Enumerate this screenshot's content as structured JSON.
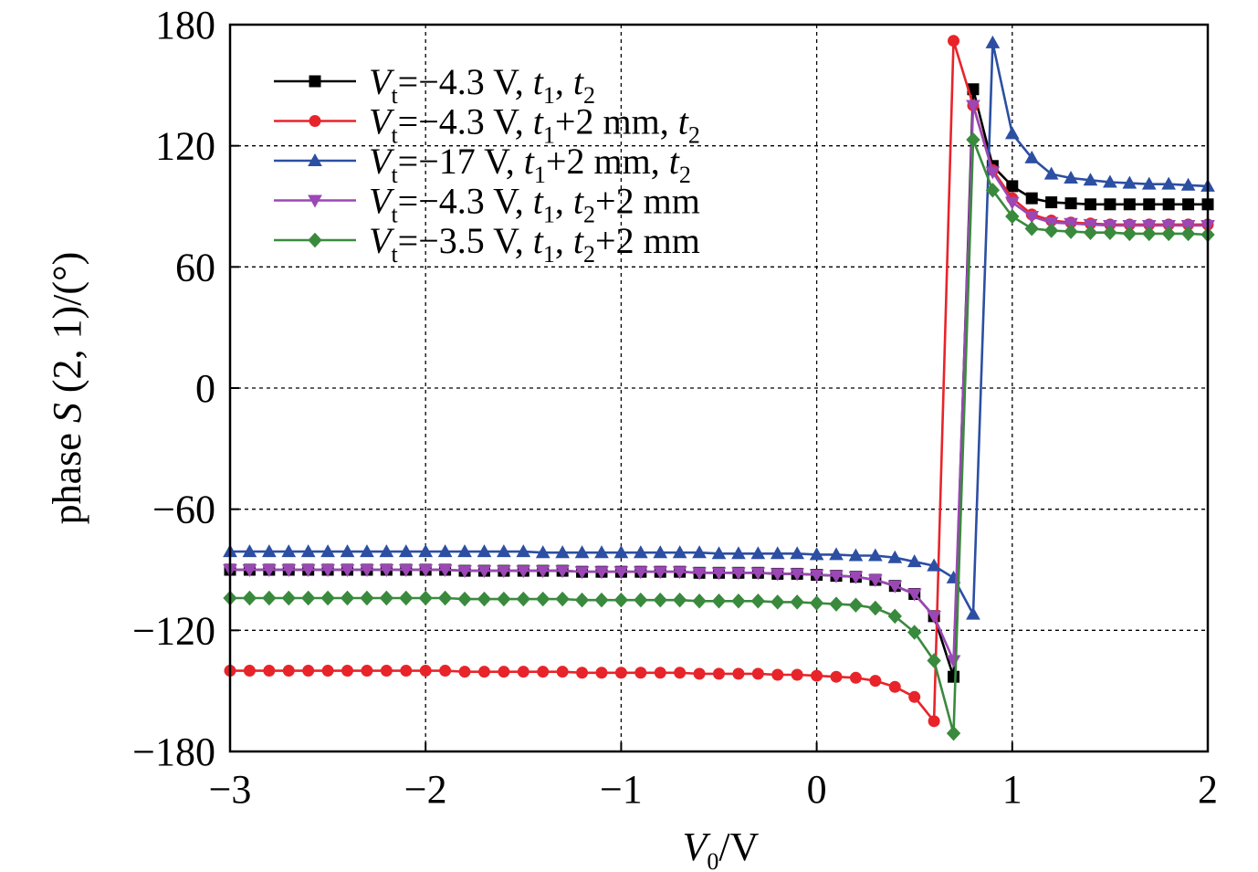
{
  "chart_data": {
    "type": "line",
    "xlabel": {
      "main": "V",
      "sub": "0",
      "suffix": "/V"
    },
    "ylabel": {
      "prefix": "phase ",
      "italic": "S",
      "suffix": " (2, 1)/(°)"
    },
    "xlim": [
      -3,
      2
    ],
    "ylim": [
      -180,
      180
    ],
    "xticks": [
      -3,
      -2,
      -1,
      0,
      1,
      2
    ],
    "yticks": [
      -180,
      -120,
      -60,
      0,
      60,
      120,
      180
    ],
    "xtick_labels": [
      "−3",
      "−2",
      "−1",
      "0",
      "1",
      "2"
    ],
    "ytick_labels": [
      "−180",
      "−120",
      "−60",
      "0",
      "60",
      "120",
      "180"
    ],
    "grid": true,
    "legend_position": "top-left",
    "x": [
      -3.0,
      -2.9,
      -2.8,
      -2.7,
      -2.6,
      -2.5,
      -2.4,
      -2.3,
      -2.2,
      -2.1,
      -2.0,
      -1.9,
      -1.8,
      -1.7,
      -1.6,
      -1.5,
      -1.4,
      -1.3,
      -1.2,
      -1.1,
      -1.0,
      -0.9,
      -0.8,
      -0.7,
      -0.6,
      -0.5,
      -0.4,
      -0.3,
      -0.2,
      -0.1,
      0.0,
      0.1,
      0.2,
      0.3,
      0.4,
      0.5,
      0.6,
      0.7,
      0.8,
      0.9,
      1.0,
      1.1,
      1.2,
      1.3,
      1.4,
      1.5,
      1.6,
      1.7,
      1.8,
      1.9,
      2.0
    ],
    "series": [
      {
        "legend": {
          "v": "V",
          "vsub": "t",
          "rest": "=−4.3 V, ",
          "parts": [
            [
              "t",
              "1"
            ],
            [
              ", ",
              ""
            ],
            [
              "t",
              "2"
            ]
          ]
        },
        "color": "#000000",
        "marker": "square",
        "values": [
          -90,
          -90,
          -90,
          -90,
          -90,
          -90,
          -90,
          -90,
          -90,
          -90,
          -90,
          -90,
          -90.5,
          -90.5,
          -90.5,
          -90.5,
          -90.5,
          -90.5,
          -91,
          -91,
          -91,
          -91,
          -91,
          -91,
          -91.5,
          -91.5,
          -91.5,
          -91.5,
          -92,
          -92,
          -92.5,
          -93,
          -93.5,
          -95,
          -98,
          -102,
          -113,
          -143,
          148,
          110,
          100,
          94,
          92,
          91.5,
          91,
          91,
          91,
          91,
          91,
          91,
          91
        ]
      },
      {
        "legend": {
          "v": "V",
          "vsub": "t",
          "rest": "=−4.3 V, ",
          "parts": [
            [
              "t",
              "1"
            ],
            [
              "+2 mm, ",
              ""
            ],
            [
              "t",
              "2"
            ]
          ]
        },
        "color": "#e8242b",
        "marker": "circle",
        "values": [
          -140,
          -140,
          -140,
          -140,
          -140,
          -140,
          -140,
          -140,
          -140,
          -140,
          -140,
          -140,
          -140.5,
          -140.5,
          -140.5,
          -140.5,
          -140.5,
          -140.5,
          -141,
          -141,
          -141,
          -141,
          -141,
          -141,
          -141.5,
          -141.5,
          -141.5,
          -141.5,
          -142,
          -142,
          -142.5,
          -143,
          -143.5,
          -145,
          -148,
          -153,
          -165,
          172,
          140,
          108,
          94,
          86,
          83,
          82,
          81.5,
          81,
          81,
          81,
          81,
          81,
          81
        ]
      },
      {
        "legend": {
          "v": "V",
          "vsub": "t",
          "rest": "=−17 V, ",
          "parts": [
            [
              "t",
              "1"
            ],
            [
              "+2 mm, ",
              ""
            ],
            [
              "t",
              "2"
            ]
          ]
        },
        "color": "#2c4fa3",
        "marker": "triangle",
        "values": [
          -81,
          -81,
          -81,
          -81,
          -81,
          -81,
          -81,
          -81,
          -81,
          -81,
          -81,
          -81,
          -81,
          -81,
          -81,
          -81,
          -81.5,
          -81.5,
          -81.5,
          -81.5,
          -81.5,
          -81.5,
          -81.5,
          -81.5,
          -81.5,
          -82,
          -82,
          -82,
          -82,
          -82,
          -82.5,
          -82.5,
          -83,
          -83,
          -84,
          -86,
          -88,
          -94,
          -112,
          171,
          126,
          114,
          106,
          104,
          103,
          102,
          101.5,
          101,
          101,
          100.5,
          100
        ]
      },
      {
        "legend": {
          "v": "V",
          "vsub": "t",
          "rest": "=−4.3 V, ",
          "parts": [
            [
              "t",
              "1"
            ],
            [
              ", ",
              ""
            ],
            [
              "t",
              "2"
            ],
            [
              "+2 mm",
              ""
            ]
          ]
        },
        "color": "#9b47b5",
        "marker": "triangle-down",
        "values": [
          -90,
          -90,
          -90,
          -90,
          -90,
          -90,
          -90,
          -90,
          -90,
          -90,
          -90,
          -90,
          -90.5,
          -90.5,
          -90.5,
          -90.5,
          -90.5,
          -90.5,
          -91,
          -91,
          -91,
          -91,
          -91,
          -91,
          -91.5,
          -91.5,
          -91.5,
          -91.5,
          -92,
          -92,
          -92.5,
          -93,
          -93.5,
          -95,
          -98,
          -102,
          -113,
          -135,
          140,
          107,
          92,
          85,
          82,
          81.5,
          81,
          80.5,
          80.5,
          80.5,
          80.5,
          80.5,
          80.5
        ]
      },
      {
        "legend": {
          "v": "V",
          "vsub": "t",
          "rest": "=−3.5 V, ",
          "parts": [
            [
              "t",
              "1"
            ],
            [
              ", ",
              ""
            ],
            [
              "t",
              "2"
            ],
            [
              "+2 mm",
              ""
            ]
          ]
        },
        "color": "#3a8a3e",
        "marker": "diamond",
        "values": [
          -104,
          -104,
          -104,
          -104,
          -104,
          -104,
          -104,
          -104,
          -104,
          -104,
          -104,
          -104,
          -104.5,
          -104.5,
          -104.5,
          -104.5,
          -104.5,
          -104.5,
          -105,
          -105,
          -105,
          -105,
          -105,
          -105,
          -105.5,
          -105.5,
          -105.5,
          -105.5,
          -106,
          -106,
          -106.5,
          -107,
          -107.5,
          -109,
          -113,
          -121,
          -135,
          -171,
          123,
          98,
          85,
          79,
          78,
          77.5,
          77,
          77,
          76.5,
          76.5,
          76.5,
          76.5,
          76
        ]
      }
    ]
  }
}
